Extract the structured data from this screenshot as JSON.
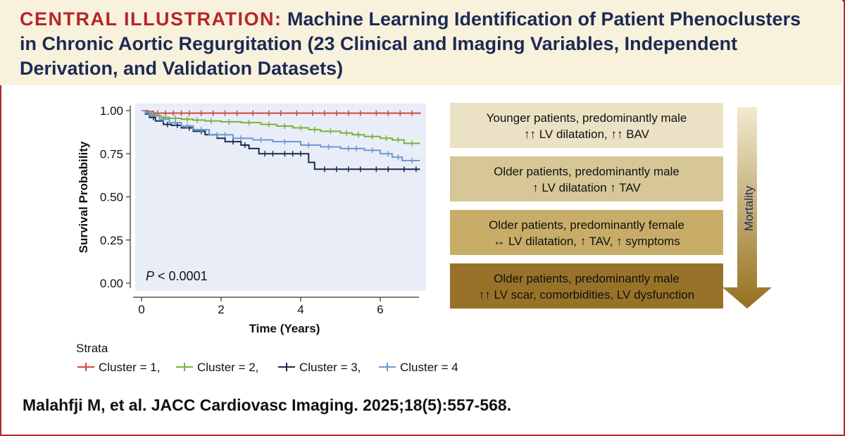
{
  "header": {
    "lead": "CENTRAL ILLUSTRATION:",
    "title": "Machine Learning Identification of Patient Phenoclusters in Chronic Aortic Regurgitation (23 Clinical and Imaging Variables, Independent Derivation, and Validation Datasets)"
  },
  "colors": {
    "frame": "#b5252c",
    "navy": "#1d2a55",
    "header_bg": "#f8f2dc",
    "plot_bg": "#e9edf8"
  },
  "chart_data": {
    "type": "line",
    "subtype": "kaplan-meier survival",
    "xlabel": "Time (Years)",
    "ylabel": "Survival Probability",
    "xlim": [
      0,
      7
    ],
    "ylim": [
      0,
      1
    ],
    "x_ticks": [
      0,
      2,
      4,
      6
    ],
    "y_ticks": [
      0,
      0.25,
      0.5,
      0.75,
      1
    ],
    "y_tick_labels": [
      "0.00",
      "0.25",
      "0.50",
      "0.75",
      "1.00"
    ],
    "p_value_label": "P",
    "p_value_text": " < 0.0001",
    "legend_title": "Strata",
    "legend_position": "bottom",
    "series": [
      {
        "name": "Cluster = 1,",
        "color": "#cc4a3c",
        "x": [
          0,
          0.15,
          0.3,
          7.0
        ],
        "y": [
          1.0,
          0.995,
          0.985,
          0.98
        ],
        "censors": [
          0.4,
          0.6,
          0.8,
          1.0,
          1.2,
          1.5,
          1.8,
          2.1,
          2.4,
          2.8,
          3.2,
          3.5,
          3.9,
          4.3,
          4.6,
          4.9,
          5.2,
          5.5,
          5.9,
          6.2,
          6.5,
          6.8
        ]
      },
      {
        "name": "Cluster = 2,",
        "color": "#7db03b",
        "x": [
          0,
          0.1,
          0.2,
          0.35,
          0.5,
          0.7,
          1.0,
          1.3,
          1.6,
          2.0,
          2.5,
          3.0,
          3.4,
          3.8,
          4.2,
          4.5,
          5.0,
          5.3,
          5.6,
          6.0,
          6.3,
          6.6,
          7.0
        ],
        "y": [
          1.0,
          0.99,
          0.98,
          0.97,
          0.96,
          0.955,
          0.95,
          0.945,
          0.94,
          0.935,
          0.93,
          0.92,
          0.91,
          0.9,
          0.89,
          0.88,
          0.87,
          0.86,
          0.85,
          0.84,
          0.83,
          0.81,
          0.81
        ],
        "censors": [
          0.25,
          0.45,
          0.6,
          0.85,
          1.15,
          1.4,
          1.75,
          2.2,
          2.7,
          3.2,
          3.6,
          4.0,
          4.35,
          4.75,
          5.15,
          5.45,
          5.8,
          6.15,
          6.45,
          6.8
        ]
      },
      {
        "name": "Cluster = 3,",
        "color": "#1b2a4a",
        "x": [
          0,
          0.1,
          0.2,
          0.35,
          0.55,
          0.75,
          1.0,
          1.3,
          1.6,
          1.9,
          2.1,
          2.5,
          2.7,
          2.95,
          4.2,
          4.35,
          7.0
        ],
        "y": [
          1.0,
          0.98,
          0.96,
          0.94,
          0.92,
          0.915,
          0.9,
          0.88,
          0.86,
          0.84,
          0.82,
          0.8,
          0.78,
          0.75,
          0.7,
          0.66,
          0.66
        ],
        "censors": [
          0.3,
          0.65,
          0.9,
          1.2,
          1.5,
          2.3,
          2.6,
          3.1,
          3.3,
          3.6,
          3.8,
          4.0,
          4.6,
          4.9,
          5.2,
          5.5,
          5.9,
          6.2,
          6.6,
          6.9
        ]
      },
      {
        "name": "Cluster = 4",
        "color": "#6a9ad0",
        "x": [
          0,
          0.1,
          0.25,
          0.45,
          0.7,
          1.0,
          1.3,
          1.7,
          2.3,
          2.8,
          3.3,
          4.0,
          4.5,
          5.0,
          5.6,
          6.0,
          6.3,
          6.55,
          7.0
        ],
        "y": [
          1.0,
          0.985,
          0.97,
          0.95,
          0.93,
          0.91,
          0.89,
          0.86,
          0.84,
          0.83,
          0.82,
          0.8,
          0.79,
          0.78,
          0.77,
          0.75,
          0.73,
          0.71,
          0.71
        ],
        "censors": [
          0.2,
          0.55,
          0.85,
          1.15,
          1.5,
          1.9,
          2.1,
          2.5,
          3.0,
          3.6,
          4.2,
          4.7,
          5.2,
          5.4,
          5.8,
          6.2,
          6.45,
          6.8
        ]
      }
    ]
  },
  "clusters": [
    {
      "line1": "Younger patients, predominantly male",
      "line2": "↑↑ LV dilatation, ↑↑ BAV",
      "color": "#ebe1c5"
    },
    {
      "line1": "Older patients, predominantly male",
      "line2": "↑ LV dilatation ↑ TAV",
      "color": "#d7c797"
    },
    {
      "line1": "Older patients, predominantly female",
      "line2": "↔ LV dilatation, ↑ TAV, ↑ symptoms",
      "color": "#c8ad68"
    },
    {
      "line1": "Older patients, predominantly male",
      "line2": "↑↑ LV scar, comorbidities, LV dysfunction",
      "color": "#987228"
    }
  ],
  "mortality_label": "Mortality",
  "citation": "Malahfji M, et al. JACC Cardiovasc Imaging. 2025;18(5):557-568."
}
